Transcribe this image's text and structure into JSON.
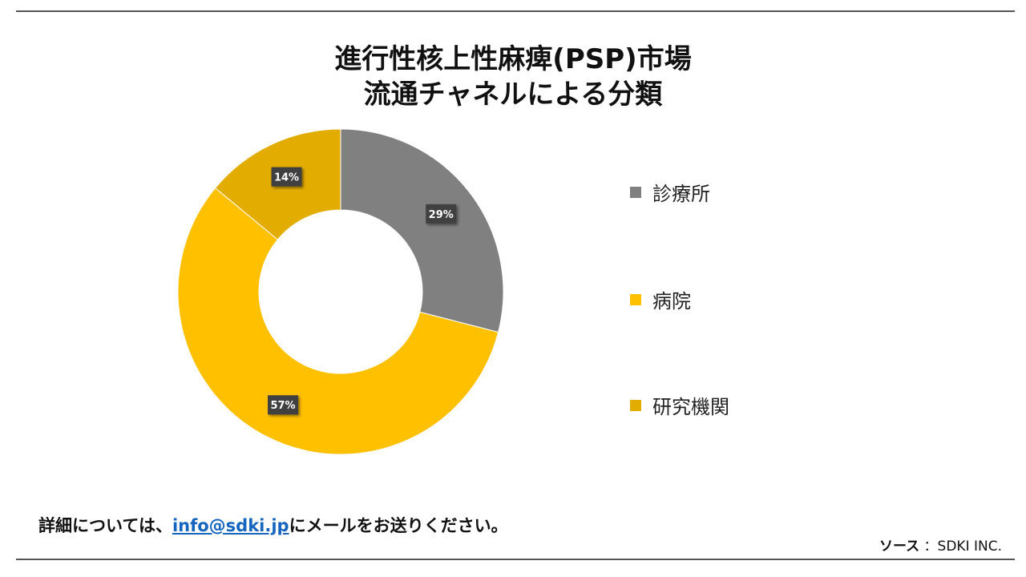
{
  "title_line1": "進行性核上性麻痺(PSP)市場",
  "title_line2": "流通チャネルによる分類",
  "chart_data": {
    "type": "pie",
    "subtype": "donut",
    "title": "進行性核上性麻痺(PSP)市場 流通チャネルによる分類",
    "legend_position": "right",
    "series": [
      {
        "name": "診療所",
        "value": 29,
        "label": "29%",
        "color": "#808080"
      },
      {
        "name": "病院",
        "value": 57,
        "label": "57%",
        "color": "#FFC000"
      },
      {
        "name": "研究機関",
        "value": 14,
        "label": "14%",
        "color": "#E2AC00"
      }
    ]
  },
  "legend": {
    "items": [
      {
        "label": " 診療所",
        "color": "#808080"
      },
      {
        "label": "病院",
        "color": "#FFC000"
      },
      {
        "label": "研究機関",
        "color": "#E2AC00"
      }
    ]
  },
  "footer": {
    "note_prefix": "詳細については、",
    "email": "info@sdki.jp",
    "note_suffix": "にメールをお送りください。"
  },
  "source": {
    "label": "ソース",
    "value": "：SDKI INC."
  }
}
